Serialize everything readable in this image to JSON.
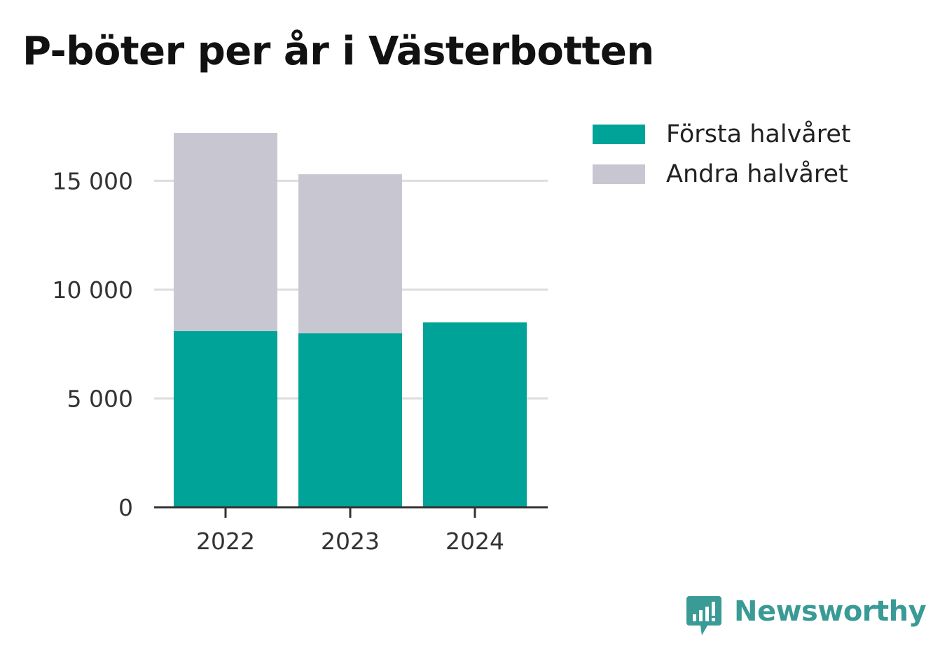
{
  "title": "P-böter per år i Västerbotten",
  "chart_data": {
    "type": "bar",
    "stacked": true,
    "categories": [
      "2022",
      "2023",
      "2024"
    ],
    "series": [
      {
        "name": "Första halvåret",
        "values": [
          8100,
          8000,
          8500
        ],
        "color": "#00a398"
      },
      {
        "name": "Andra halvåret",
        "values": [
          9100,
          7300,
          0
        ],
        "color": "#c8c7d1"
      }
    ],
    "ylim": [
      0,
      17200
    ],
    "yticks": [
      0,
      5000,
      10000,
      15000
    ],
    "ytick_labels": [
      "0",
      "5 000",
      "10 000",
      "15 000"
    ],
    "grid": true,
    "legend": "top-right",
    "xlabel": "",
    "ylabel": ""
  },
  "brand": {
    "name": "Newsworthy",
    "icon": "newsworthy-logo-icon",
    "color": "#3a9a95"
  }
}
